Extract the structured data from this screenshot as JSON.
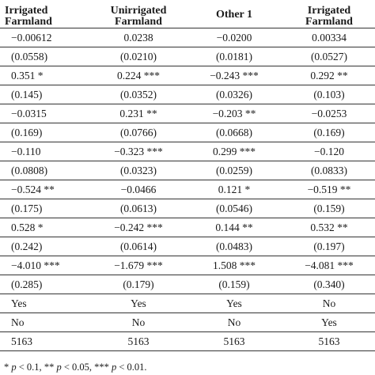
{
  "headers": [
    [
      "Irrigated",
      "Farmland"
    ],
    [
      "Unirrigated",
      "Farmland"
    ],
    [
      "Other 1",
      ""
    ],
    [
      "Irrigated",
      "Farmland"
    ]
  ],
  "rows": [
    [
      "−0.00612",
      "0.0238",
      "−0.0200",
      "0.00334"
    ],
    [
      "(0.0558)",
      "(0.0210)",
      "(0.0181)",
      "(0.0527)"
    ],
    [
      "0.351 *",
      "0.224 ***",
      "−0.243 ***",
      "0.292 **"
    ],
    [
      "(0.145)",
      "(0.0352)",
      "(0.0326)",
      "(0.103)"
    ],
    [
      "−0.0315",
      "0.231 **",
      "−0.203 **",
      "−0.0253"
    ],
    [
      "(0.169)",
      "(0.0766)",
      "(0.0668)",
      "(0.169)"
    ],
    [
      "−0.110",
      "−0.323 ***",
      "0.299 ***",
      "−0.120"
    ],
    [
      "(0.0808)",
      "(0.0323)",
      "(0.0259)",
      "(0.0833)"
    ],
    [
      "−0.524 **",
      "−0.0466",
      "0.121 *",
      "−0.519 **"
    ],
    [
      "(0.175)",
      "(0.0613)",
      "(0.0546)",
      "(0.159)"
    ],
    [
      "0.528 *",
      "−0.242 ***",
      "0.144 **",
      "0.532 **"
    ],
    [
      "(0.242)",
      "(0.0614)",
      "(0.0483)",
      "(0.197)"
    ],
    [
      "−4.010 ***",
      "−1.679 ***",
      "1.508 ***",
      "−4.081 ***"
    ],
    [
      "(0.285)",
      "(0.179)",
      "(0.159)",
      "(0.340)"
    ],
    [
      "Yes",
      "Yes",
      "Yes",
      "No"
    ],
    [
      "No",
      "No",
      "No",
      "Yes"
    ],
    [
      "5163",
      "5163",
      "5163",
      "5163"
    ]
  ],
  "footnote": {
    "p1_stars": "*",
    "p1_sym": "p",
    "p1_val": " < 0.1, ",
    "p2_stars": "**",
    "p2_sym": "p",
    "p2_val": " < 0.05, ",
    "p3_stars": "***",
    "p3_sym": "p",
    "p3_val": " < 0.01."
  }
}
